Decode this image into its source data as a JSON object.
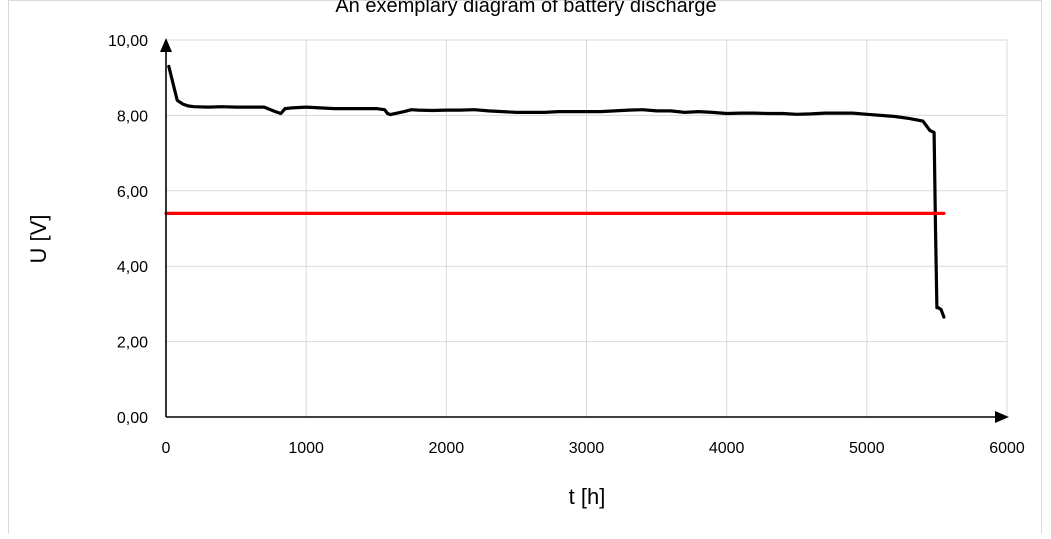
{
  "chart_data": {
    "type": "line",
    "title": "An exemplary diagram of battery discharge",
    "xlabel": "t [h]",
    "ylabel": "U [V]",
    "xlim": [
      0,
      6000
    ],
    "ylim": [
      0,
      10
    ],
    "xticks": [
      0,
      1000,
      2000,
      3000,
      4000,
      5000,
      6000
    ],
    "xtick_labels": [
      "0",
      "1000",
      "2000",
      "3000",
      "4000",
      "5000",
      "6000"
    ],
    "yticks": [
      0,
      2,
      4,
      6,
      8,
      10
    ],
    "ytick_labels": [
      "0,00",
      "2,00",
      "4,00",
      "6,00",
      "8,00",
      "10,00"
    ],
    "grid": true,
    "legend": "none",
    "series": [
      {
        "color": "#000000",
        "x": [
          20,
          80,
          120,
          160,
          200,
          300,
          400,
          500,
          600,
          700,
          780,
          820,
          850,
          900,
          1000,
          1100,
          1200,
          1300,
          1400,
          1500,
          1560,
          1580,
          1600,
          1650,
          1700,
          1750,
          1800,
          1900,
          2000,
          2100,
          2200,
          2300,
          2400,
          2500,
          2600,
          2700,
          2800,
          2900,
          3000,
          3100,
          3200,
          3300,
          3400,
          3500,
          3600,
          3700,
          3800,
          3900,
          4000,
          4100,
          4200,
          4300,
          4400,
          4500,
          4600,
          4700,
          4800,
          4900,
          5000,
          5100,
          5200,
          5300,
          5400,
          5450,
          5480,
          5490,
          5500,
          5510,
          5530,
          5550
        ],
        "y": [
          9.3,
          8.4,
          8.3,
          8.25,
          8.23,
          8.22,
          8.23,
          8.22,
          8.22,
          8.22,
          8.1,
          8.05,
          8.18,
          8.2,
          8.22,
          8.2,
          8.18,
          8.18,
          8.18,
          8.18,
          8.15,
          8.05,
          8.02,
          8.06,
          8.1,
          8.15,
          8.14,
          8.13,
          8.14,
          8.14,
          8.15,
          8.12,
          8.1,
          8.08,
          8.08,
          8.08,
          8.1,
          8.1,
          8.1,
          8.1,
          8.12,
          8.14,
          8.15,
          8.12,
          8.12,
          8.08,
          8.1,
          8.08,
          8.05,
          8.06,
          8.06,
          8.05,
          8.05,
          8.03,
          8.04,
          8.06,
          8.06,
          8.06,
          8.03,
          8.0,
          7.97,
          7.92,
          7.85,
          7.6,
          7.55,
          5.0,
          2.9,
          2.9,
          2.85,
          2.65
        ]
      },
      {
        "color": "#ff0000",
        "x": [
          0,
          5550
        ],
        "y": [
          5.4,
          5.4
        ]
      }
    ]
  }
}
